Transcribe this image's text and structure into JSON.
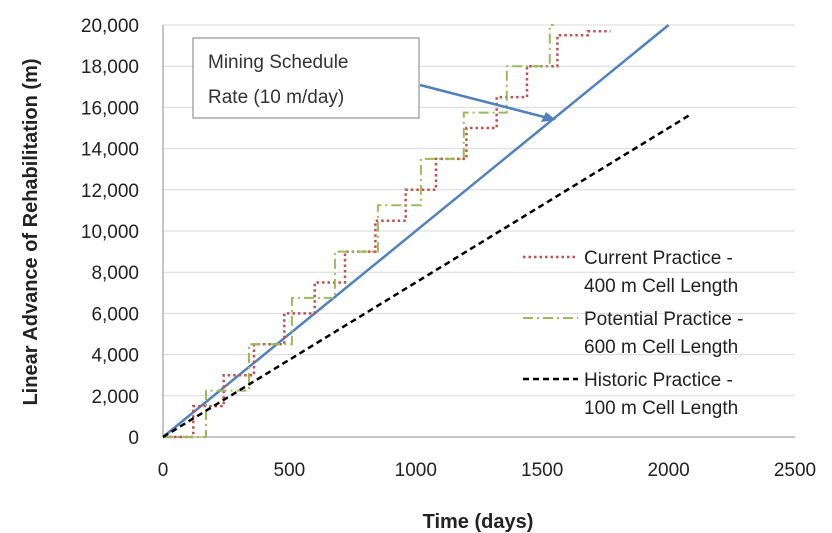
{
  "chart_data": {
    "type": "line",
    "title": "",
    "xlabel": "Time (days)",
    "ylabel": "Linear Advance of Rehabilitation (m)",
    "xlim": [
      0,
      2500
    ],
    "ylim": [
      0,
      20000
    ],
    "x_ticks": [
      0,
      500,
      1000,
      1500,
      2000,
      2500
    ],
    "y_ticks": [
      0,
      2000,
      4000,
      6000,
      8000,
      10000,
      12000,
      14000,
      16000,
      18000,
      20000
    ],
    "x_tick_labels": [
      "0",
      "500",
      "1000",
      "1500",
      "2000",
      "2500"
    ],
    "y_tick_labels": [
      "0",
      "2,000",
      "4,000",
      "6,000",
      "8,000",
      "10,000",
      "12,000",
      "14,000",
      "16,000",
      "18,000",
      "20,000"
    ],
    "grid": "horizontal",
    "legend_position": "bottom-right",
    "annotation": {
      "lines": [
        "Mining Schedule",
        "Rate (10 m/day)"
      ],
      "points_to": "Mining Schedule Rate line"
    },
    "series": [
      {
        "name": "Mining Schedule Rate (10 m/day)",
        "style": "solid",
        "color": "#4F81BD",
        "legend": false,
        "points": [
          [
            0,
            0
          ],
          [
            2000,
            20000
          ]
        ]
      },
      {
        "name": "Current Practice - 400 m Cell Length",
        "style": "dotted",
        "color": "#C0504D",
        "legend": true,
        "legend_lines": [
          "Current Practice -",
          "400 m Cell Length"
        ],
        "step_interval_days": 120,
        "step_size_m": 1500,
        "start_offset_days": 0,
        "x_end": 1770,
        "y_end": 19700
      },
      {
        "name": "Potential Practice - 600 m Cell Length",
        "style": "dashdot",
        "color": "#9BBB59",
        "legend": true,
        "legend_lines": [
          "Potential Practice -",
          "600 m Cell Length"
        ],
        "step_interval_days": 170,
        "step_size_m": 2250,
        "start_offset_days": 0,
        "x_end": 1545,
        "y_end": 20000
      },
      {
        "name": "Historic Practice - 100 m Cell Length",
        "style": "dashed",
        "color": "#000000",
        "legend": true,
        "legend_lines": [
          "Historic Practice -",
          "100 m Cell Length"
        ],
        "points": [
          [
            0,
            0
          ],
          [
            2080,
            15600
          ]
        ]
      }
    ]
  }
}
